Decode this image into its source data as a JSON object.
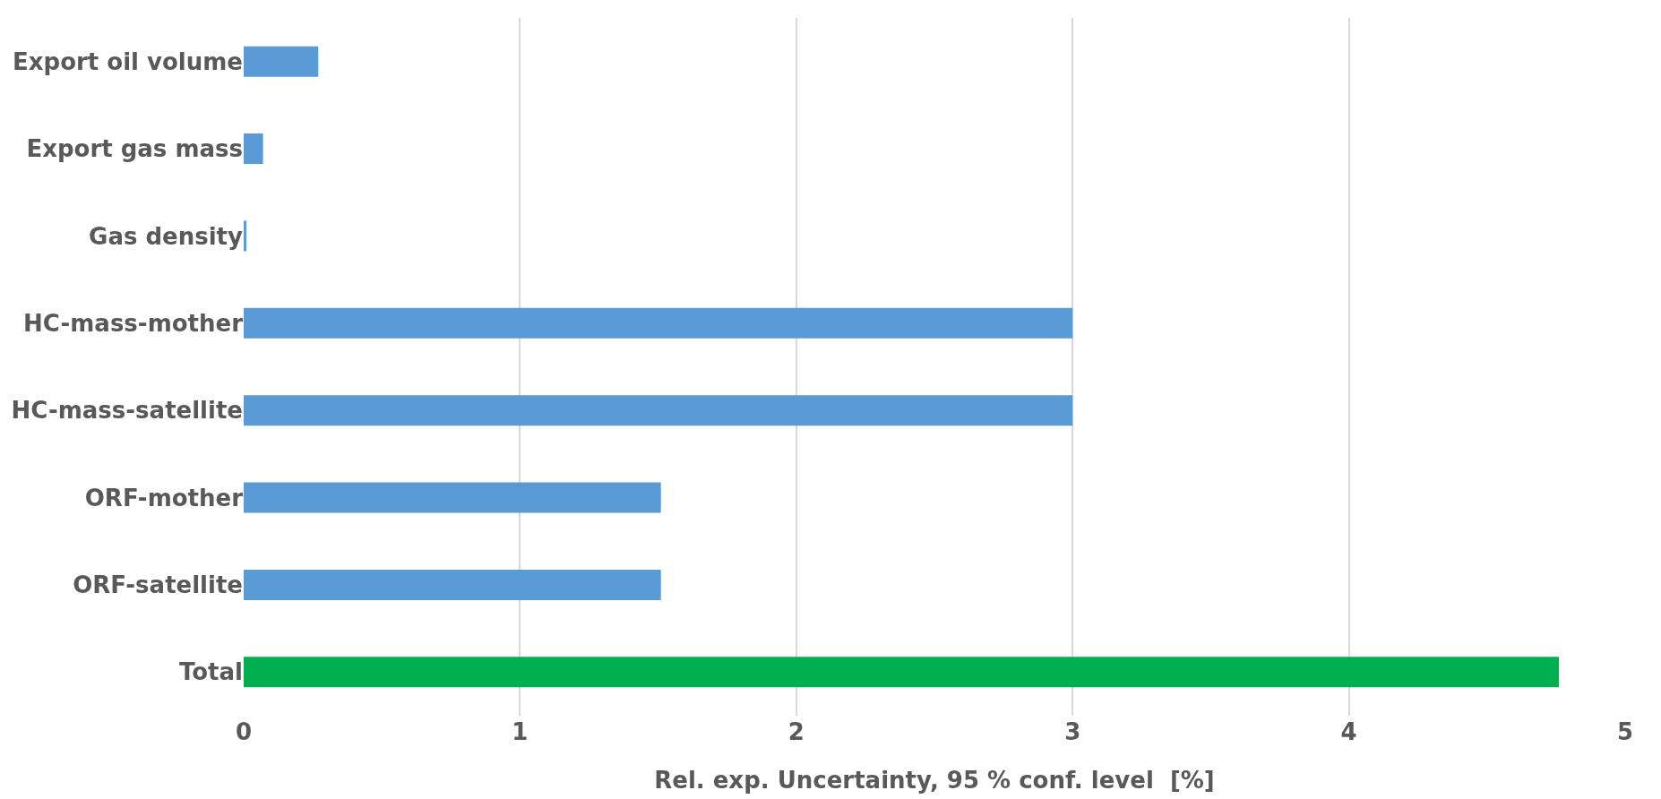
{
  "chart_data": {
    "type": "bar",
    "orientation": "horizontal",
    "xlabel": "Rel. exp. Uncertainty, 95 % conf. level  [%]",
    "categories": [
      "Export oil volume",
      "Export gas mass",
      "Gas density",
      "HC-mass-mother",
      "HC-mass-satellite",
      "ORF-mother",
      "ORF-satellite",
      "Total"
    ],
    "values": [
      0.27,
      0.07,
      0.01,
      3.0,
      3.0,
      1.51,
      1.51,
      4.76
    ],
    "colors": [
      "#5b9bd5",
      "#5b9bd5",
      "#5b9bd5",
      "#5b9bd5",
      "#5b9bd5",
      "#5b9bd5",
      "#5b9bd5",
      "#00b050"
    ],
    "xlim": [
      0,
      5
    ],
    "xticks": [
      0,
      1,
      2,
      3,
      4,
      5
    ],
    "grid": "x",
    "legend": false
  }
}
